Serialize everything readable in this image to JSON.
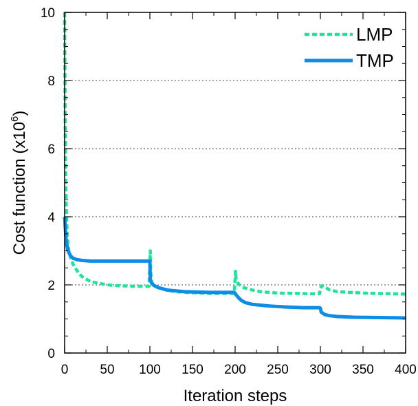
{
  "chart_data": {
    "type": "line",
    "title": "",
    "xlabel": "Iteration steps",
    "ylabel": "Cost function (x10",
    "ylabel_sup": "6",
    "ylabel_end": ")",
    "xlim": [
      0,
      400
    ],
    "ylim": [
      0,
      10
    ],
    "x_ticks": [
      0,
      50,
      100,
      150,
      200,
      250,
      300,
      350,
      400
    ],
    "y_ticks": [
      0,
      2,
      4,
      6,
      8,
      10
    ],
    "grid": "horizontal dotted at y = 2, 4, 6, 8",
    "legend_position": "top-right",
    "series": [
      {
        "name": "LMP",
        "color": "#1ee39a",
        "style": "dashed",
        "x": [
          0,
          0.5,
          1,
          2,
          3,
          4,
          5,
          7,
          10,
          15,
          20,
          30,
          40,
          50,
          60,
          70,
          80,
          90,
          99,
          100,
          100.5,
          101,
          102,
          104,
          107,
          110,
          120,
          130,
          150,
          170,
          190,
          199,
          200,
          200.5,
          201,
          202,
          205,
          210,
          220,
          230,
          250,
          270,
          290,
          299,
          300,
          302,
          305,
          310,
          320,
          350,
          380,
          400
        ],
        "y": [
          10,
          7.5,
          5.5,
          4.2,
          3.5,
          3.2,
          3.0,
          2.8,
          2.6,
          2.4,
          2.25,
          2.1,
          2.05,
          2.0,
          1.98,
          1.97,
          1.96,
          1.96,
          1.96,
          2.6,
          3.0,
          2.4,
          2.1,
          2.0,
          1.95,
          1.92,
          1.85,
          1.8,
          1.77,
          1.75,
          1.75,
          1.75,
          2.2,
          2.4,
          2.2,
          2.1,
          2.0,
          1.92,
          1.85,
          1.8,
          1.76,
          1.75,
          1.74,
          1.74,
          1.9,
          1.98,
          1.95,
          1.86,
          1.8,
          1.76,
          1.74,
          1.73
        ]
      },
      {
        "name": "TMP",
        "color": "#0f8ce6",
        "style": "solid",
        "x": [
          0,
          1,
          2,
          4,
          7,
          10,
          15,
          20,
          30,
          50,
          80,
          100,
          100.5,
          102,
          105,
          110,
          120,
          140,
          170,
          199,
          200,
          203,
          207,
          212,
          220,
          240,
          260,
          280,
          299,
          300,
          301,
          305,
          310,
          320,
          340,
          370,
          400
        ],
        "y": [
          4.0,
          3.6,
          3.25,
          3.0,
          2.85,
          2.78,
          2.74,
          2.72,
          2.7,
          2.7,
          2.7,
          2.7,
          2.15,
          2.05,
          1.98,
          1.92,
          1.85,
          1.8,
          1.78,
          1.78,
          1.75,
          1.65,
          1.55,
          1.48,
          1.43,
          1.38,
          1.35,
          1.33,
          1.33,
          1.32,
          1.2,
          1.13,
          1.1,
          1.07,
          1.05,
          1.04,
          1.03
        ]
      }
    ]
  }
}
